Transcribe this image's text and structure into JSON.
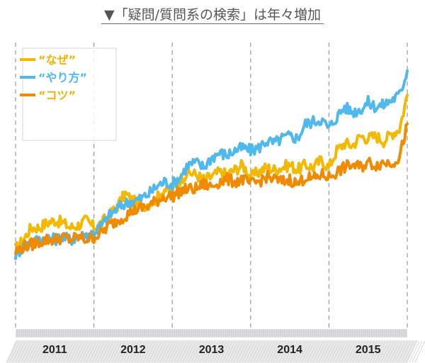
{
  "title": "▼「疑問/質問系の検索」は年々増加",
  "chart_data": {
    "type": "line",
    "title": "▼「疑問/質問系の検索」は年々増加",
    "xlabel": "",
    "ylabel": "",
    "x_tick_labels": [
      "2011",
      "2012",
      "2013",
      "2014",
      "2015"
    ],
    "x_range": [
      2011.0,
      2016.0
    ],
    "ylim": [
      0,
      100
    ],
    "grid": "vertical dashed year separators",
    "legend": "top-left",
    "series": [
      {
        "name": "“なぜ”",
        "color": "#f5b800",
        "x": [
          2011.0,
          2011.1,
          2011.2,
          2011.3,
          2011.4,
          2011.5,
          2011.6,
          2011.7,
          2011.8,
          2011.9,
          2012.0,
          2012.1,
          2012.2,
          2012.3,
          2012.4,
          2012.5,
          2012.6,
          2012.7,
          2012.8,
          2012.9,
          2013.0,
          2013.1,
          2013.2,
          2013.3,
          2013.4,
          2013.5,
          2013.6,
          2013.7,
          2013.8,
          2013.9,
          2014.0,
          2014.1,
          2014.2,
          2014.3,
          2014.4,
          2014.5,
          2014.6,
          2014.7,
          2014.8,
          2014.9,
          2015.0,
          2015.1,
          2015.2,
          2015.3,
          2015.4,
          2015.5,
          2015.6,
          2015.7,
          2015.8,
          2015.9,
          2016.0
        ],
        "values": [
          26,
          30,
          35,
          35,
          37,
          38,
          37,
          35,
          36,
          38,
          35,
          37,
          40,
          44,
          49,
          46,
          44,
          45,
          47,
          51,
          50,
          55,
          58,
          57,
          55,
          56,
          58,
          57,
          59,
          61,
          56,
          58,
          60,
          59,
          60,
          61,
          59,
          61,
          60,
          63,
          60,
          67,
          70,
          69,
          73,
          72,
          73,
          71,
          74,
          76,
          90
        ]
      },
      {
        "name": "“やり方”",
        "color": "#4fb8ec",
        "x": [
          2011.0,
          2011.1,
          2011.2,
          2011.3,
          2011.4,
          2011.5,
          2011.6,
          2011.7,
          2011.8,
          2011.9,
          2012.0,
          2012.1,
          2012.2,
          2012.3,
          2012.4,
          2012.5,
          2012.6,
          2012.7,
          2012.8,
          2012.9,
          2013.0,
          2013.1,
          2013.2,
          2013.3,
          2013.4,
          2013.5,
          2013.6,
          2013.7,
          2013.8,
          2013.9,
          2014.0,
          2014.1,
          2014.2,
          2014.3,
          2014.4,
          2014.5,
          2014.6,
          2014.7,
          2014.8,
          2014.9,
          2015.0,
          2015.1,
          2015.2,
          2015.3,
          2015.4,
          2015.5,
          2015.6,
          2015.7,
          2015.8,
          2015.9,
          2016.0
        ],
        "values": [
          24,
          27,
          29,
          30,
          31,
          30,
          31,
          30,
          31,
          32,
          33,
          36,
          40,
          43,
          45,
          46,
          47,
          49,
          52,
          54,
          53,
          56,
          61,
          62,
          60,
          64,
          66,
          65,
          67,
          68,
          67,
          68,
          71,
          70,
          72,
          73,
          72,
          78,
          79,
          80,
          76,
          81,
          85,
          83,
          84,
          87,
          85,
          86,
          88,
          90,
          100
        ]
      },
      {
        "name": "“コツ”",
        "color": "#f08a00",
        "x": [
          2011.0,
          2011.1,
          2011.2,
          2011.3,
          2011.4,
          2011.5,
          2011.6,
          2011.7,
          2011.8,
          2011.9,
          2012.0,
          2012.1,
          2012.2,
          2012.3,
          2012.4,
          2012.5,
          2012.6,
          2012.7,
          2012.8,
          2012.9,
          2013.0,
          2013.1,
          2013.2,
          2013.3,
          2013.4,
          2013.5,
          2013.6,
          2013.7,
          2013.8,
          2013.9,
          2014.0,
          2014.1,
          2014.2,
          2014.3,
          2014.4,
          2014.5,
          2014.6,
          2014.7,
          2014.8,
          2014.9,
          2015.0,
          2015.1,
          2015.2,
          2015.3,
          2015.4,
          2015.5,
          2015.6,
          2015.7,
          2015.8,
          2015.9,
          2016.0
        ],
        "values": [
          25,
          27,
          28,
          29,
          30,
          30,
          31,
          30,
          31,
          30,
          31,
          33,
          36,
          38,
          40,
          42,
          43,
          44,
          46,
          48,
          48,
          50,
          51,
          51,
          53,
          52,
          54,
          55,
          54,
          55,
          53,
          54,
          56,
          55,
          54,
          55,
          53,
          56,
          55,
          57,
          56,
          58,
          60,
          61,
          60,
          62,
          61,
          62,
          62,
          64,
          78
        ]
      }
    ]
  }
}
